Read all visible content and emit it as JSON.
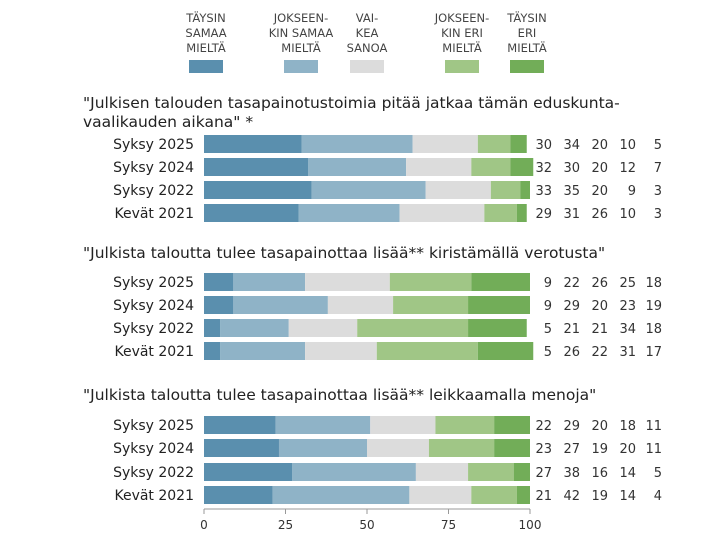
{
  "chart_data": {
    "type": "bar",
    "stacked": true,
    "orientation": "horizontal",
    "legend": {
      "position": "top",
      "entries": [
        {
          "label": "TÄYSIN SAMAA MIELTÄ",
          "lines": [
            "TÄYSIN",
            "SAMAA",
            "MIELTÄ"
          ],
          "color": "#5a8fae"
        },
        {
          "label": "JOKSEEN-KIN SAMAA MIELTÄ",
          "lines": [
            "JOKSEEN-",
            "KIN SAMAA",
            "MIELTÄ"
          ],
          "color": "#8fb3c7"
        },
        {
          "label": "VAI-KEA SANOA",
          "lines": [
            "VAI-",
            "KEA",
            "SANOA"
          ],
          "color": "#dcdcdc"
        },
        {
          "label": "JOKSEEN-KIN ERI MIELTÄ",
          "lines": [
            "JOKSEEN-",
            "KIN ERI",
            "MIELTÄ"
          ],
          "color": "#a0c686"
        },
        {
          "label": "TÄYSIN ERI MIELTÄ",
          "lines": [
            "TÄYSIN",
            "ERI",
            "MIELTÄ"
          ],
          "color": "#72ad58"
        }
      ]
    },
    "xlim": [
      0,
      100
    ],
    "xticks": [
      "0",
      "25",
      "50",
      "75",
      "100"
    ],
    "panels": [
      {
        "title_lines": [
          "\"Julkisen talouden tasapainotustoimia pitää jatkaa tämän eduskunta-",
          " vaalikauden aikana\" *"
        ],
        "categories": [
          "Syksy 2025",
          "Syksy 2024",
          "Syksy 2022",
          "Kevät 2021"
        ],
        "values": [
          [
            30,
            34,
            20,
            10,
            5
          ],
          [
            32,
            30,
            20,
            12,
            7
          ],
          [
            33,
            35,
            20,
            9,
            3
          ],
          [
            29,
            31,
            26,
            10,
            3
          ]
        ]
      },
      {
        "title_lines": [
          "\"Julkista taloutta tulee tasapainottaa lisää** kiristämällä verotusta\""
        ],
        "categories": [
          "Syksy 2025",
          "Syksy 2024",
          "Syksy 2022",
          "Kevät 2021"
        ],
        "values": [
          [
            9,
            22,
            26,
            25,
            18
          ],
          [
            9,
            29,
            20,
            23,
            19
          ],
          [
            5,
            21,
            21,
            34,
            18
          ],
          [
            5,
            26,
            22,
            31,
            17
          ]
        ]
      },
      {
        "title_lines": [
          "\"Julkista taloutta tulee tasapainottaa lisää** leikkaamalla menoja\""
        ],
        "categories": [
          "Syksy 2025",
          "Syksy 2024",
          "Syksy 2022",
          "Kevät 2021"
        ],
        "values": [
          [
            22,
            29,
            20,
            18,
            11
          ],
          [
            23,
            27,
            19,
            20,
            11
          ],
          [
            27,
            38,
            16,
            14,
            5
          ],
          [
            21,
            42,
            19,
            14,
            4
          ]
        ]
      }
    ]
  }
}
